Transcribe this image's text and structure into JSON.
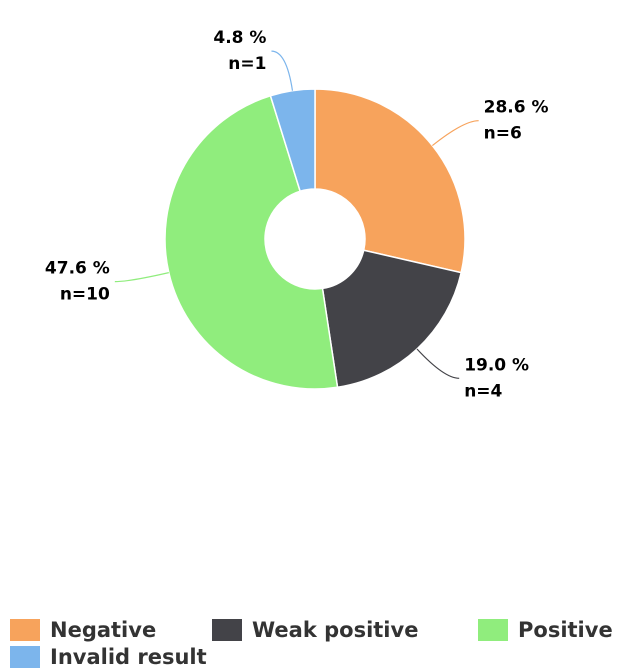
{
  "chart_data": {
    "type": "donut",
    "categories": [
      "Negative",
      "Weak positive",
      "Positive",
      "Invalid result"
    ],
    "values": [
      28.6,
      19.0,
      47.6,
      4.8
    ],
    "value_labels": [
      "28.6 %",
      "19.0 %",
      "47.6 %",
      "4.8 %"
    ],
    "counts": [
      6,
      4,
      10,
      1
    ],
    "count_labels": [
      "n=6",
      "n=4",
      "n=10",
      "n=1"
    ],
    "colors": [
      "#f7a35c",
      "#434348",
      "#90ed7d",
      "#7cb5ec"
    ]
  }
}
